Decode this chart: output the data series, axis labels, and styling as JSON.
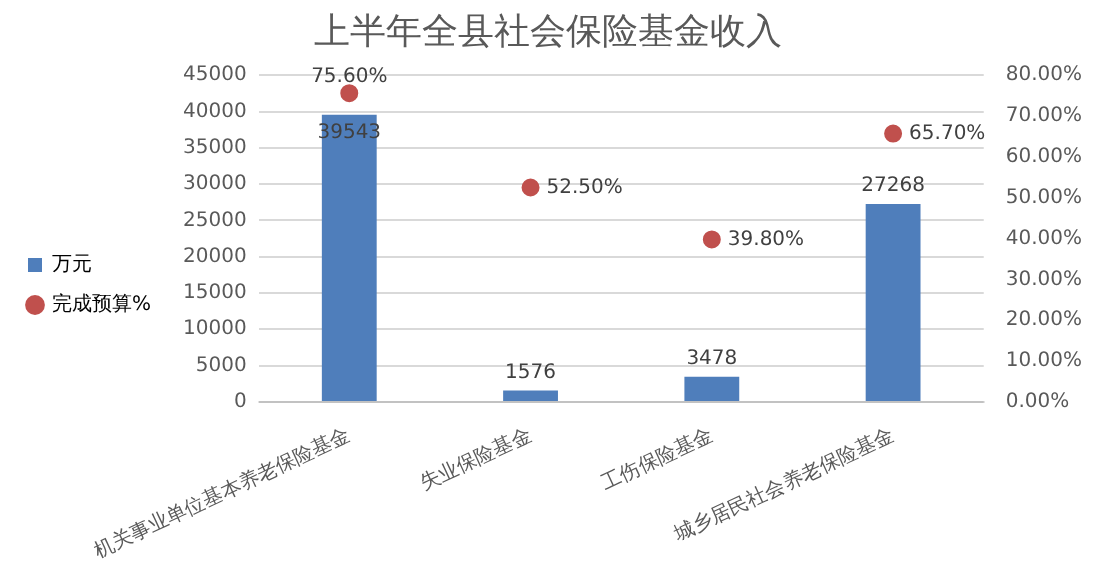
{
  "chart_data": {
    "type": "bar",
    "title": "上半年全县社会保险基金收入",
    "categories": [
      "机关事业单位基本养老保险基金",
      "失业保险基金",
      "工伤保险基金",
      "城乡居民社会养老保险基金"
    ],
    "series": [
      {
        "name": "万元",
        "color": "#4f7ebb",
        "values": [
          39543,
          1576,
          3478,
          27268
        ],
        "value_labels": [
          "39543",
          "1576",
          "3478",
          "27268"
        ]
      },
      {
        "name": "完成预算%",
        "type": "scatter",
        "axis": "y2",
        "color": "#c0504d",
        "values": [
          75.6,
          52.5,
          39.8,
          65.7
        ],
        "value_labels": [
          "75.60%",
          "52.50%",
          "39.80%",
          "65.70%"
        ]
      }
    ],
    "ylim": [
      0,
      45000
    ],
    "yticks": [
      0,
      5000,
      10000,
      15000,
      20000,
      25000,
      30000,
      35000,
      40000,
      45000
    ],
    "y2lim": [
      0,
      80
    ],
    "y2ticks": [
      {
        "value": 0,
        "label": "0.00%"
      },
      {
        "value": 10,
        "label": "10.00%"
      },
      {
        "value": 20,
        "label": "20.00%"
      },
      {
        "value": 30,
        "label": "30.00%"
      },
      {
        "value": 40,
        "label": "40.00%"
      },
      {
        "value": 50,
        "label": "50.00%"
      },
      {
        "value": 60,
        "label": "60.00%"
      },
      {
        "value": 70,
        "label": "70.00%"
      },
      {
        "value": 80,
        "label": "80.00%"
      }
    ],
    "grid": "y",
    "legend": "left",
    "marker": "circle"
  }
}
